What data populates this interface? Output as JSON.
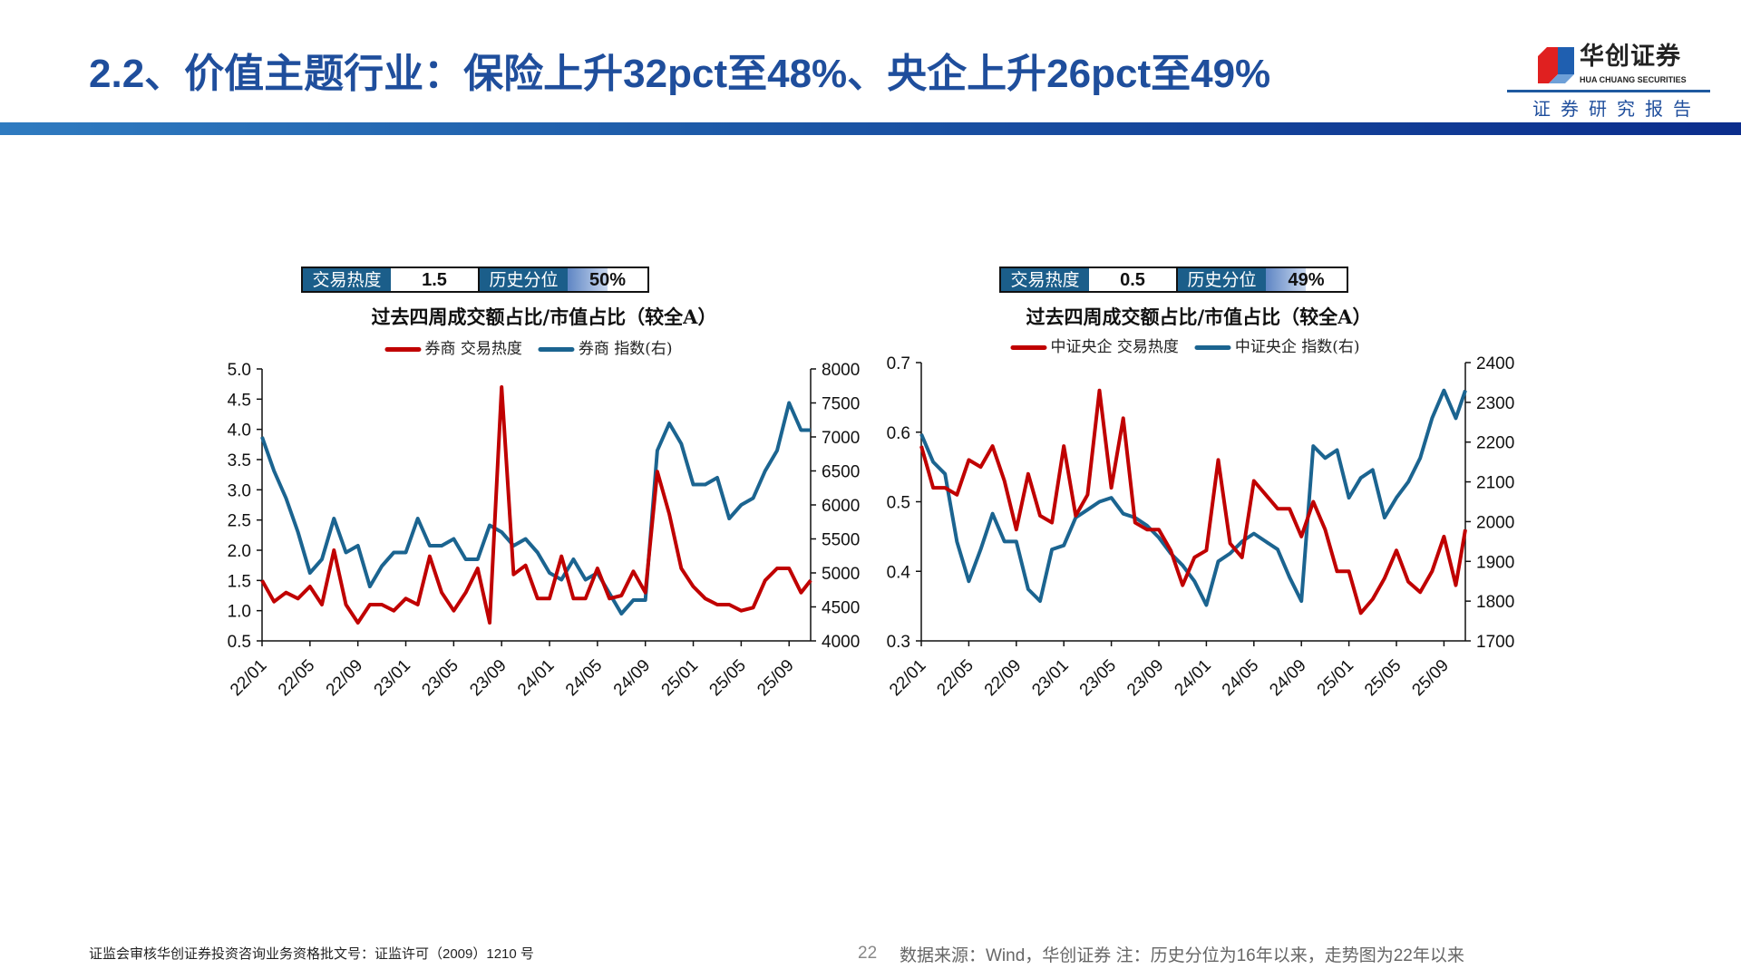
{
  "header": {
    "title": "2.2、价值主题行业：保险上升32pct至48%、央企上升26pct至49%",
    "logo_cn": "华创证券",
    "logo_en": "HUA CHUANG SECURITIES",
    "report_label": "证券研究报告"
  },
  "colors": {
    "heat": "#c00000",
    "index": "#1b6490",
    "title": "#1f4e9c",
    "stat_label_bg": "#1b5e8a"
  },
  "panels": [
    {
      "stat": {
        "heat_label": "交易热度",
        "heat_value": "1.5",
        "pct_label": "历史分位",
        "pct_value": "50%",
        "pct": 50
      },
      "title": "过去四周成交额占比/市值占比（较全A）",
      "legend": [
        "券商 交易热度",
        "券商 指数(右)"
      ]
    },
    {
      "stat": {
        "heat_label": "交易热度",
        "heat_value": "0.5",
        "pct_label": "历史分位",
        "pct_value": "49%",
        "pct": 49
      },
      "title": "过去四周成交额占比/市值占比（较全A）",
      "legend": [
        "中证央企 交易热度",
        "中证央企 指数(右)"
      ]
    }
  ],
  "chart_data": [
    {
      "type": "line",
      "title": "过去四周成交额占比/市值占比（较全A）",
      "x_ticks": [
        "22/01",
        "22/05",
        "22/09",
        "23/01",
        "23/05",
        "23/09",
        "24/01",
        "24/05",
        "24/09",
        "25/01",
        "25/05",
        "25/09"
      ],
      "x": [
        "22/01",
        "22/02",
        "22/03",
        "22/04",
        "22/05",
        "22/06",
        "22/07",
        "22/08",
        "22/09",
        "22/10",
        "22/11",
        "22/12",
        "23/01",
        "23/02",
        "23/03",
        "23/04",
        "23/05",
        "23/06",
        "23/07",
        "23/08",
        "23/09",
        "23/10",
        "23/11",
        "23/12",
        "24/01",
        "24/02",
        "24/03",
        "24/04",
        "24/05",
        "24/06",
        "24/07",
        "24/08",
        "24/09",
        "24/10",
        "24/11",
        "24/12",
        "25/01",
        "25/02",
        "25/03",
        "25/04",
        "25/05",
        "25/06",
        "25/07",
        "25/08",
        "25/09",
        "25/10",
        "25/11"
      ],
      "y_left": {
        "range": [
          0.5,
          5.0
        ],
        "ticks": [
          "0.5",
          "1.0",
          "1.5",
          "2.0",
          "2.5",
          "3.0",
          "3.5",
          "4.0",
          "4.5",
          "5.0"
        ]
      },
      "y_right": {
        "range": [
          4000,
          8000
        ],
        "ticks": [
          "4000",
          "4500",
          "5000",
          "5500",
          "6000",
          "6500",
          "7000",
          "7500",
          "8000"
        ]
      },
      "series": [
        {
          "name": "券商 交易热度",
          "axis": "left",
          "values": [
            1.5,
            1.15,
            1.3,
            1.2,
            1.4,
            1.1,
            2.0,
            1.1,
            0.8,
            1.1,
            1.1,
            1.0,
            1.2,
            1.1,
            1.9,
            1.3,
            1.0,
            1.3,
            1.7,
            0.8,
            4.7,
            1.6,
            1.75,
            1.2,
            1.2,
            1.9,
            1.2,
            1.2,
            1.7,
            1.2,
            1.25,
            1.65,
            1.3,
            3.3,
            2.6,
            1.7,
            1.4,
            1.2,
            1.1,
            1.1,
            1.0,
            1.05,
            1.5,
            1.7,
            1.7,
            1.3,
            1.5
          ]
        },
        {
          "name": "券商 指数(右)",
          "axis": "right",
          "values": [
            7000,
            6500,
            6100,
            5600,
            5000,
            5200,
            5800,
            5300,
            5400,
            4800,
            5100,
            5300,
            5300,
            5800,
            5400,
            5400,
            5500,
            5200,
            5200,
            5700,
            5600,
            5400,
            5500,
            5300,
            5000,
            4900,
            5200,
            4900,
            5000,
            4700,
            4400,
            4600,
            4600,
            6800,
            7200,
            6900,
            6300,
            6300,
            6400,
            5800,
            6000,
            6100,
            6500,
            6800,
            7500,
            7100,
            7100
          ]
        }
      ],
      "legend_position": "top",
      "grid": false
    },
    {
      "type": "line",
      "title": "过去四周成交额占比/市值占比（较全A）",
      "x_ticks": [
        "22/01",
        "22/05",
        "22/09",
        "23/01",
        "23/05",
        "23/09",
        "24/01",
        "24/05",
        "24/09",
        "25/01",
        "25/05",
        "25/09"
      ],
      "x": [
        "22/01",
        "22/02",
        "22/03",
        "22/04",
        "22/05",
        "22/06",
        "22/07",
        "22/08",
        "22/09",
        "22/10",
        "22/11",
        "22/12",
        "23/01",
        "23/02",
        "23/03",
        "23/04",
        "23/05",
        "23/06",
        "23/07",
        "23/08",
        "23/09",
        "23/10",
        "23/11",
        "23/12",
        "24/01",
        "24/02",
        "24/03",
        "24/04",
        "24/05",
        "24/06",
        "24/07",
        "24/08",
        "24/09",
        "24/10",
        "24/11",
        "24/12",
        "25/01",
        "25/02",
        "25/03",
        "25/04",
        "25/05",
        "25/06",
        "25/07",
        "25/08",
        "25/09",
        "25/10",
        "25/11"
      ],
      "y_left": {
        "range": [
          0.3,
          0.7
        ],
        "ticks": [
          "0.3",
          "0.4",
          "0.5",
          "0.6",
          "0.7"
        ]
      },
      "y_right": {
        "range": [
          1700,
          2400
        ],
        "ticks": [
          "1700",
          "1800",
          "1900",
          "2000",
          "2100",
          "2200",
          "2300",
          "2400"
        ]
      },
      "series": [
        {
          "name": "中证央企 交易热度",
          "axis": "left",
          "values": [
            0.58,
            0.52,
            0.52,
            0.51,
            0.56,
            0.55,
            0.58,
            0.53,
            0.46,
            0.54,
            0.48,
            0.47,
            0.58,
            0.48,
            0.51,
            0.66,
            0.52,
            0.62,
            0.47,
            0.46,
            0.46,
            0.43,
            0.38,
            0.42,
            0.43,
            0.56,
            0.44,
            0.42,
            0.53,
            0.51,
            0.49,
            0.49,
            0.45,
            0.5,
            0.46,
            0.4,
            0.4,
            0.34,
            0.36,
            0.39,
            0.43,
            0.385,
            0.37,
            0.4,
            0.45,
            0.38,
            0.46
          ]
        },
        {
          "name": "中证央企 指数(右)",
          "axis": "right",
          "values": [
            2220,
            2150,
            2120,
            1950,
            1850,
            1930,
            2020,
            1950,
            1950,
            1830,
            1800,
            1930,
            1940,
            2010,
            2030,
            2050,
            2060,
            2020,
            2010,
            1990,
            1960,
            1920,
            1890,
            1850,
            1790,
            1900,
            1920,
            1950,
            1970,
            1950,
            1930,
            1860,
            1800,
            2190,
            2160,
            2180,
            2060,
            2110,
            2130,
            2010,
            2060,
            2100,
            2160,
            2260,
            2330,
            2260,
            2330
          ]
        }
      ],
      "legend_position": "top",
      "grid": false
    }
  ],
  "footer": {
    "license": "证监会审核华创证券投资咨询业务资格批文号：证监许可（2009）1210 号",
    "page_number": "22",
    "source": "数据来源：Wind，华创证券  注：历史分位为16年以来，走势图为22年以来"
  }
}
